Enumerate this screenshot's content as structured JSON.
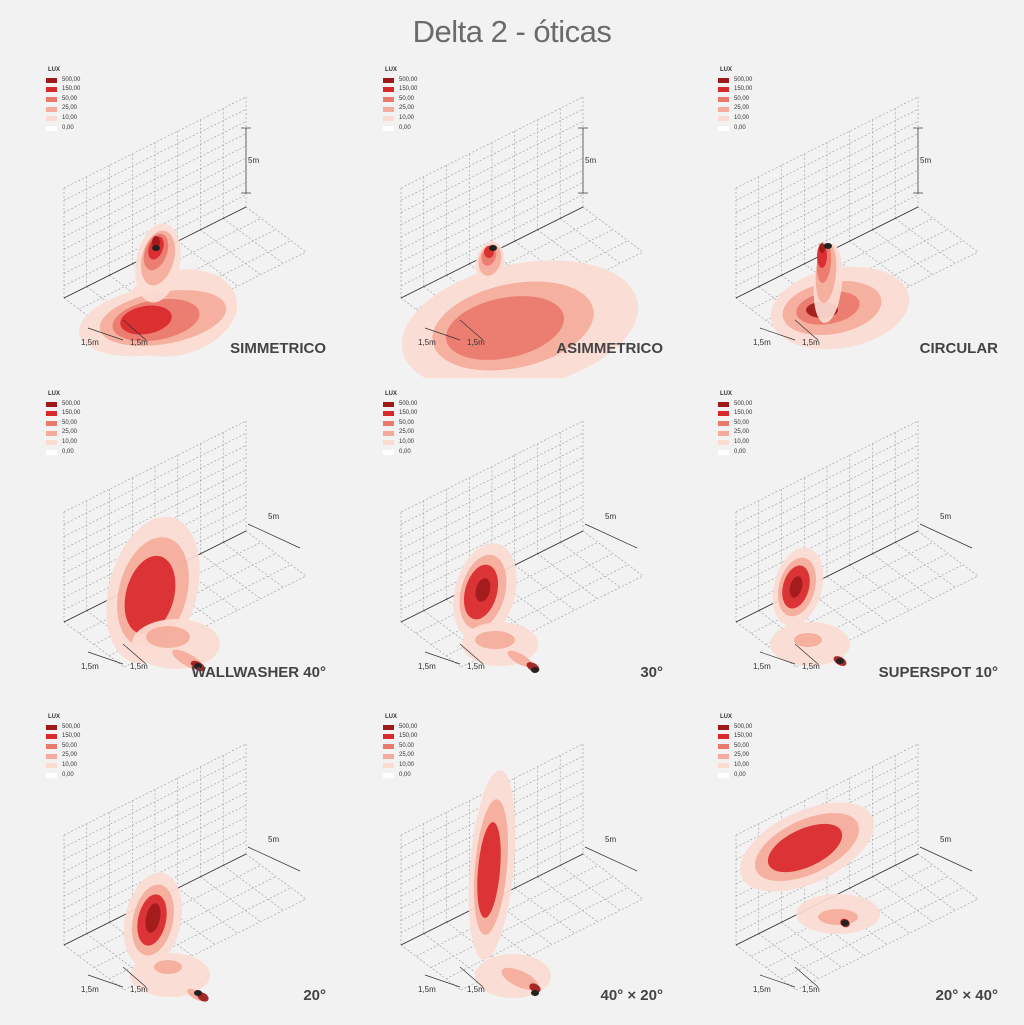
{
  "title": "Delta 2 - óticas",
  "legend": {
    "header": "LUX",
    "levels": [
      {
        "value": "500,00",
        "color": "#9e1a1a"
      },
      {
        "value": "150,00",
        "color": "#d9282c"
      },
      {
        "value": "50,00",
        "color": "#ea7a6c"
      },
      {
        "value": "25,00",
        "color": "#f4ab9b"
      },
      {
        "value": "10,00",
        "color": "#fbdcd3"
      },
      {
        "value": "0,00",
        "color": "#ffffff"
      }
    ]
  },
  "dimensions": {
    "height": "5m",
    "depth_a": "1,5m",
    "depth_b": "1,5m"
  },
  "panels": [
    {
      "label": "SIMMETRICO",
      "mount": "wall"
    },
    {
      "label": "ASIMMETRICO",
      "mount": "wall"
    },
    {
      "label": "CIRCULAR",
      "mount": "wall"
    },
    {
      "label": "WALLWASHER 40°",
      "mount": "floor"
    },
    {
      "label": "30°",
      "mount": "floor"
    },
    {
      "label": "SUPERSPOT 10°",
      "mount": "floor"
    },
    {
      "label": "20°",
      "mount": "floor"
    },
    {
      "label": "40° × 20°",
      "mount": "floor"
    },
    {
      "label": "20° × 40°",
      "mount": "floor"
    }
  ]
}
